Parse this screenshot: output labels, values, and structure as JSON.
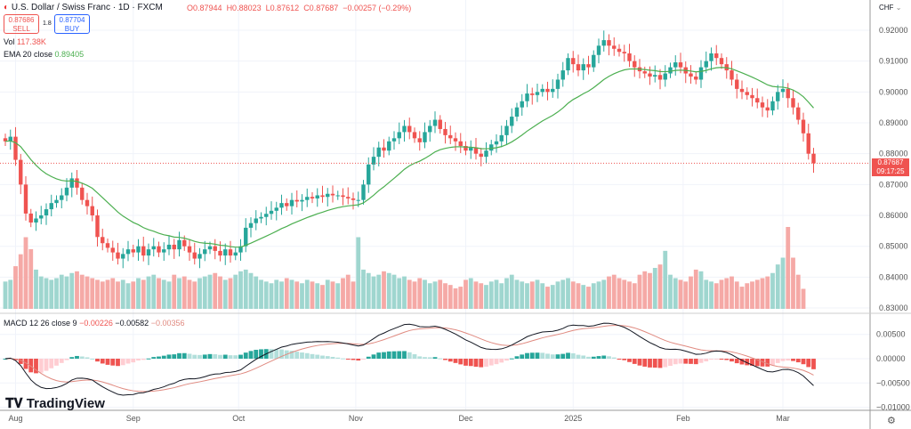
{
  "header": {
    "title": "U.S. Dollar / Swiss Franc · 1D · FXCM",
    "ohlc": {
      "o": "O0.87944",
      "h": "H0.88023",
      "l": "L0.87612",
      "c": "C0.87687",
      "chg": "−0.00257 (−0.29%)"
    },
    "sell_price": "0.87686",
    "sell_label": "SELL",
    "spread": "1.8",
    "buy_price": "0.87704",
    "buy_label": "BUY",
    "vol_label": "Vol",
    "vol_value": "117.38K",
    "ema_label": "EMA 20 close",
    "ema_value": "0.89405",
    "macd_label": "MACD 12 26 close 9",
    "macd_hist": "−0.00226",
    "macd_line": "−0.00582",
    "macd_signal": "−0.00356"
  },
  "currency": "CHF",
  "last_price": "0.87687",
  "countdown": "09:17:25",
  "logo": "TradingView",
  "colors": {
    "up": "#26a69a",
    "down": "#ef5350",
    "ema": "#4caf50",
    "macd": "#131722",
    "signal": "#e08a80"
  },
  "chart_data": {
    "type": "candlestick",
    "y_ticks": [
      "0.92000",
      "0.91000",
      "0.90000",
      "0.89000",
      "0.88000",
      "0.87000",
      "0.86000",
      "0.85000",
      "0.84000",
      "0.83000"
    ],
    "ylim": [
      0.83,
      0.92
    ],
    "macd_ticks": [
      "0.00500",
      "0.00000",
      "−0.00500",
      "−0.01000"
    ],
    "x_ticks": [
      {
        "label": "Aug",
        "i": 2
      },
      {
        "label": "Sep",
        "i": 25
      },
      {
        "label": "Oct",
        "i": 45.6
      },
      {
        "label": "Nov",
        "i": 68.5
      },
      {
        "label": "Dec",
        "i": 90
      },
      {
        "label": "2025",
        "i": 111
      },
      {
        "label": "Feb",
        "i": 132.5
      },
      {
        "label": "Mar",
        "i": 152
      }
    ],
    "closes": [
      0.884,
      0.8855,
      0.878,
      0.87,
      0.8606,
      0.8577,
      0.859,
      0.86,
      0.862,
      0.864,
      0.865,
      0.8665,
      0.869,
      0.872,
      0.869,
      0.865,
      0.863,
      0.86,
      0.853,
      0.851,
      0.8495,
      0.848,
      0.846,
      0.8475,
      0.849,
      0.848,
      0.85,
      0.847,
      0.849,
      0.85,
      0.848,
      0.849,
      0.8505,
      0.849,
      0.852,
      0.85,
      0.848,
      0.846,
      0.8475,
      0.849,
      0.85,
      0.8485,
      0.847,
      0.849,
      0.847,
      0.848,
      0.85,
      0.856,
      0.8575,
      0.859,
      0.8595,
      0.8605,
      0.8615,
      0.8625,
      0.864,
      0.863,
      0.865,
      0.8645,
      0.865,
      0.866,
      0.8655,
      0.8665,
      0.866,
      0.867,
      0.8665,
      0.8665,
      0.866,
      0.8655,
      0.865,
      0.865,
      0.87,
      0.8765,
      0.879,
      0.882,
      0.881,
      0.884,
      0.885,
      0.887,
      0.889,
      0.887,
      0.885,
      0.8837,
      0.887,
      0.889,
      0.891,
      0.888,
      0.886,
      0.885,
      0.884,
      0.8825,
      0.881,
      0.882,
      0.88,
      0.879,
      0.881,
      0.883,
      0.884,
      0.886,
      0.889,
      0.892,
      0.895,
      0.897,
      0.8995,
      0.899,
      0.9,
      0.901,
      0.9,
      0.901,
      0.904,
      0.907,
      0.911,
      0.909,
      0.907,
      0.909,
      0.908,
      0.912,
      0.915,
      0.9168,
      0.915,
      0.914,
      0.913,
      0.9125,
      0.91,
      0.908,
      0.9067,
      0.906,
      0.905,
      0.9055,
      0.904,
      0.906,
      0.908,
      0.9096,
      0.908,
      0.906,
      0.905,
      0.904,
      0.908,
      0.91,
      0.9125,
      0.911,
      0.909,
      0.907,
      0.904,
      0.901,
      0.9,
      0.899,
      0.898,
      0.8966,
      0.895,
      0.894,
      0.897,
      0.9,
      0.901,
      0.898,
      0.895,
      0.891,
      0.8866,
      0.88,
      0.8769
    ],
    "volumes_k": [
      160,
      170,
      250,
      320,
      420,
      350,
      230,
      190,
      180,
      170,
      180,
      200,
      190,
      210,
      220,
      200,
      190,
      180,
      170,
      160,
      170,
      180,
      160,
      170,
      150,
      160,
      180,
      170,
      190,
      200,
      180,
      170,
      160,
      200,
      180,
      190,
      170,
      160,
      180,
      190,
      200,
      210,
      190,
      170,
      180,
      200,
      220,
      230,
      210,
      190,
      170,
      160,
      150,
      170,
      160,
      180,
      170,
      160,
      150,
      170,
      160,
      150,
      140,
      170,
      160,
      150,
      180,
      200,
      160,
      420,
      230,
      210,
      190,
      200,
      220,
      210,
      200,
      180,
      190,
      170,
      160,
      180,
      170,
      150,
      160,
      170,
      150,
      140,
      120,
      130,
      170,
      180,
      160,
      150,
      140,
      160,
      170,
      150,
      180,
      200,
      170,
      160,
      150,
      160,
      170,
      150,
      130,
      140,
      160,
      170,
      180,
      160,
      150,
      140,
      130,
      150,
      160,
      170,
      190,
      200,
      180,
      170,
      160,
      150,
      200,
      220,
      210,
      240,
      260,
      340,
      200,
      180,
      170,
      160,
      190,
      230,
      220,
      170,
      160,
      150,
      170,
      180,
      190,
      160,
      130,
      150,
      160,
      170,
      180,
      190,
      210,
      260,
      300,
      480,
      300,
      200,
      117.38
    ]
  }
}
